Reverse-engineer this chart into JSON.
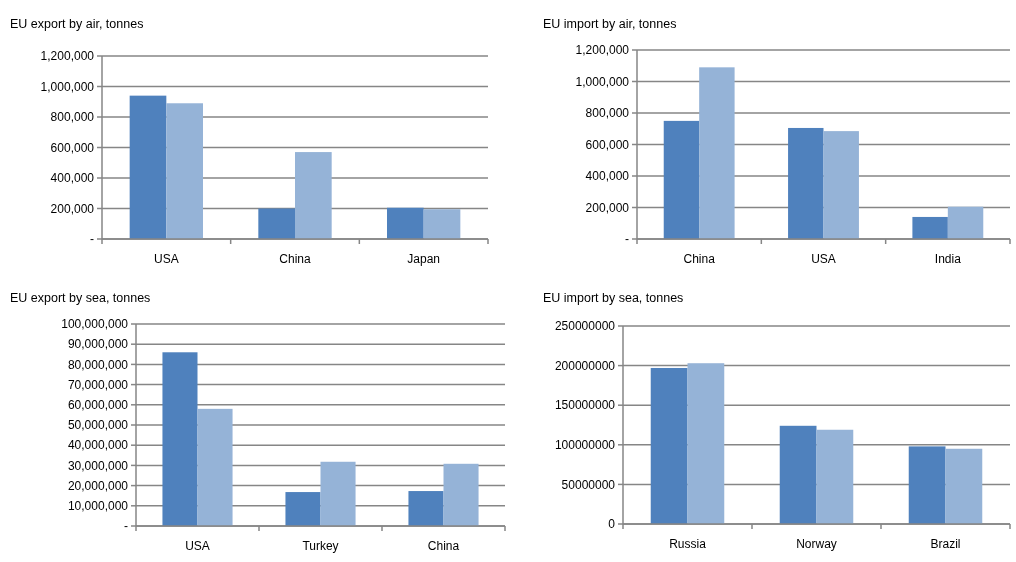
{
  "chart_data": [
    {
      "type": "bar",
      "title": "EU export by air, tonnes",
      "categories": [
        "USA",
        "China",
        "Japan"
      ],
      "series": [
        {
          "color": "#4f81bd",
          "values": [
            940000,
            200000,
            205000
          ]
        },
        {
          "color": "#95b3d7",
          "values": [
            890000,
            570000,
            195000
          ]
        }
      ],
      "ylim": [
        0,
        1200000
      ],
      "yticks": [
        {
          "value": 0,
          "label": "-"
        },
        {
          "value": 200000,
          "label": "200,000"
        },
        {
          "value": 400000,
          "label": "400,000"
        },
        {
          "value": 600000,
          "label": "600,000"
        },
        {
          "value": 800000,
          "label": "800,000"
        },
        {
          "value": 1000000,
          "label": "1,000,000"
        },
        {
          "value": 1200000,
          "label": "1,200,000"
        }
      ],
      "grid": "y"
    },
    {
      "type": "bar",
      "title": "EU import by air, tonnes",
      "categories": [
        "China",
        "USA",
        "India"
      ],
      "series": [
        {
          "color": "#4f81bd",
          "values": [
            750000,
            705000,
            140000
          ]
        },
        {
          "color": "#95b3d7",
          "values": [
            1090000,
            685000,
            205000
          ]
        }
      ],
      "ylim": [
        0,
        1200000
      ],
      "yticks": [
        {
          "value": 0,
          "label": "-"
        },
        {
          "value": 200000,
          "label": "200,000"
        },
        {
          "value": 400000,
          "label": "400,000"
        },
        {
          "value": 600000,
          "label": "600,000"
        },
        {
          "value": 800000,
          "label": "800,000"
        },
        {
          "value": 1000000,
          "label": "1,000,000"
        },
        {
          "value": 1200000,
          "label": "1,200,000"
        }
      ],
      "grid": "y"
    },
    {
      "type": "bar",
      "title": "EU export by sea, tonnes",
      "categories": [
        "USA",
        "Turkey",
        "China"
      ],
      "series": [
        {
          "color": "#4f81bd",
          "values": [
            86000000,
            16800000,
            17300000
          ]
        },
        {
          "color": "#95b3d7",
          "values": [
            58000000,
            31800000,
            30800000
          ]
        }
      ],
      "ylim": [
        0,
        100000000
      ],
      "yticks": [
        {
          "value": 0,
          "label": "-"
        },
        {
          "value": 10000000,
          "label": "10,000,000"
        },
        {
          "value": 20000000,
          "label": "20,000,000"
        },
        {
          "value": 30000000,
          "label": "30,000,000"
        },
        {
          "value": 40000000,
          "label": "40,000,000"
        },
        {
          "value": 50000000,
          "label": "50,000,000"
        },
        {
          "value": 60000000,
          "label": "60,000,000"
        },
        {
          "value": 70000000,
          "label": "70,000,000"
        },
        {
          "value": 80000000,
          "label": "80,000,000"
        },
        {
          "value": 90000000,
          "label": "90,000,000"
        },
        {
          "value": 100000000,
          "label": "100,000,000"
        }
      ],
      "grid": "y"
    },
    {
      "type": "bar",
      "title": "EU import by sea, tonnes",
      "categories": [
        "Russia",
        "Norway",
        "Brazil"
      ],
      "series": [
        {
          "color": "#4f81bd",
          "values": [
            197000000,
            124000000,
            98000000
          ]
        },
        {
          "color": "#95b3d7",
          "values": [
            203000000,
            119000000,
            95000000
          ]
        }
      ],
      "ylim": [
        0,
        250000000
      ],
      "yticks": [
        0,
        50000000,
        100000000,
        150000000,
        200000000,
        250000000
      ],
      "grid": "y"
    }
  ]
}
